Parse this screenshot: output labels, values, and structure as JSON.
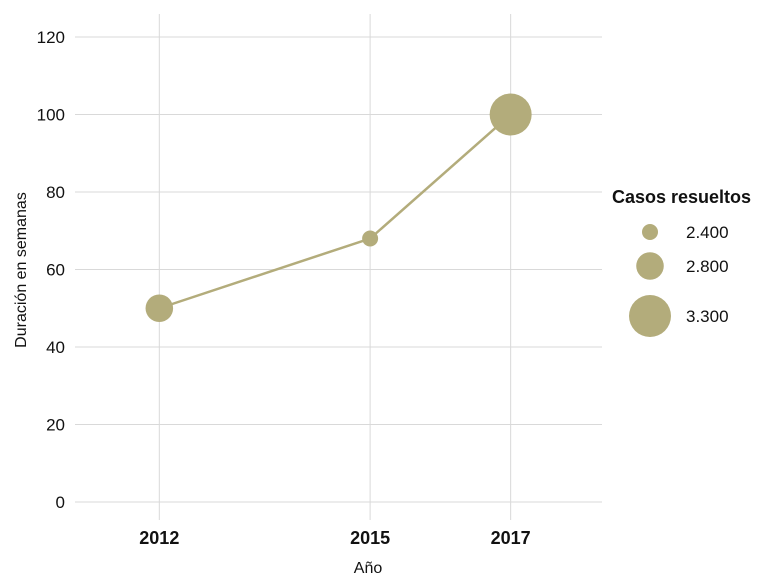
{
  "chart_data": {
    "type": "line",
    "xlabel": "Año",
    "ylabel": "Duración en semanas",
    "ylim": [
      0,
      120
    ],
    "yticks": [
      "0",
      "20",
      "40",
      "60",
      "80",
      "100",
      "120"
    ],
    "x": [
      2012,
      2015,
      2017
    ],
    "xtick_labels": [
      "2012",
      "2015",
      "2017"
    ],
    "series": [
      {
        "values": [
          50,
          68,
          100
        ],
        "size_values": [
          2800,
          2400,
          3300
        ]
      }
    ],
    "size_legend": {
      "title": "Casos resueltos",
      "entries": [
        {
          "label": "2.400",
          "value": 2400
        },
        {
          "label": "2.800",
          "value": 2800
        },
        {
          "label": "3.300",
          "value": 3300
        }
      ],
      "position": "right"
    },
    "color": "#b3ac7b",
    "grid": true
  }
}
